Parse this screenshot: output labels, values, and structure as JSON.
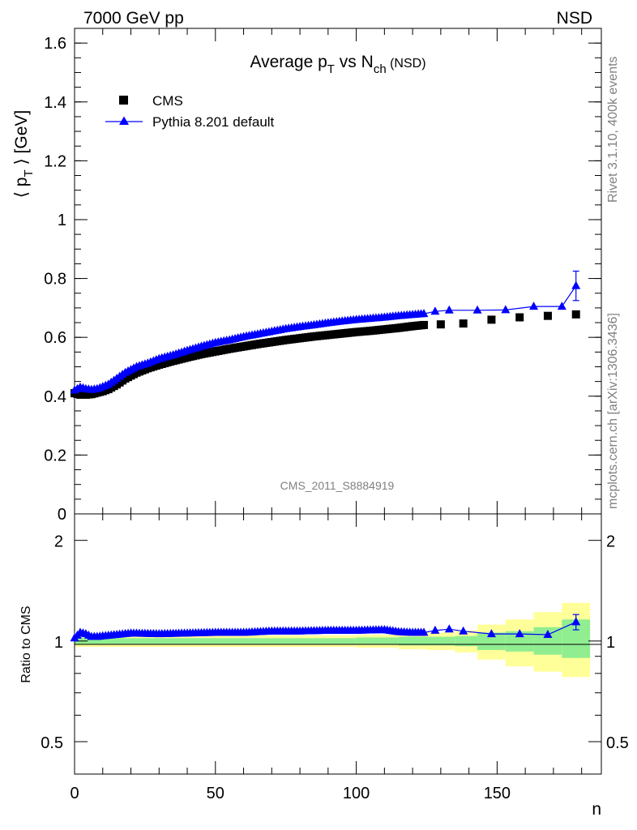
{
  "header": {
    "left": "7000 GeV pp",
    "right": "NSD"
  },
  "side_text": {
    "top": "Rivet 3.1.10,  400k events",
    "bottom": "mcplots.cern.ch [arXiv:1306.3436]"
  },
  "chart_data": [
    {
      "type": "scatter",
      "title": "Average p_T vs N_ch (NSD)",
      "ylabel": "⟨ p_T ⟩ [GeV]",
      "xlabel": "n",
      "watermark": "CMS_2011_S8884919",
      "xlim": [
        0,
        187
      ],
      "ylim": [
        0,
        1.65
      ],
      "x_ticks": [
        0,
        50,
        100,
        150
      ],
      "y_ticks": [
        0,
        0.2,
        0.4,
        0.6,
        0.8,
        1,
        1.2,
        1.4,
        1.6
      ],
      "y_tick_labels": [
        "0",
        "0.2",
        "0.4",
        "0.6",
        "0.8",
        "1",
        "1.2",
        "1.4",
        "1.6"
      ],
      "legend_position": "top-left",
      "series": [
        {
          "name": "CMS",
          "marker": "square",
          "color": "#000000",
          "anchors_x": [
            0,
            2,
            4,
            6,
            8,
            10,
            12,
            15,
            18,
            22,
            26,
            30,
            35,
            40,
            45,
            50,
            55,
            60,
            65,
            70,
            75,
            80,
            85,
            90,
            95,
            100,
            105,
            110,
            115,
            120,
            124
          ],
          "anchors_y": [
            0.41,
            0.405,
            0.405,
            0.407,
            0.412,
            0.417,
            0.424,
            0.44,
            0.46,
            0.48,
            0.495,
            0.507,
            0.52,
            0.532,
            0.543,
            0.552,
            0.561,
            0.569,
            0.577,
            0.584,
            0.591,
            0.597,
            0.603,
            0.608,
            0.613,
            0.618,
            0.622,
            0.627,
            0.632,
            0.638,
            0.642
          ],
          "extra_x": [
            130,
            138,
            148,
            158,
            168,
            178
          ],
          "extra_y": [
            0.644,
            0.647,
            0.66,
            0.668,
            0.673,
            0.678
          ]
        },
        {
          "name": "Pythia 8.201 default",
          "marker": "triangle",
          "color": "#0000ff",
          "anchors_x": [
            0,
            2,
            4,
            6,
            8,
            10,
            12,
            15,
            18,
            22,
            26,
            30,
            35,
            40,
            45,
            50,
            55,
            60,
            65,
            70,
            75,
            80,
            85,
            90,
            95,
            100,
            105,
            110,
            115,
            120,
            124
          ],
          "anchors_y": [
            0.42,
            0.43,
            0.425,
            0.422,
            0.425,
            0.432,
            0.44,
            0.46,
            0.48,
            0.5,
            0.512,
            0.527,
            0.54,
            0.555,
            0.569,
            0.582,
            0.591,
            0.602,
            0.611,
            0.62,
            0.629,
            0.636,
            0.642,
            0.649,
            0.655,
            0.66,
            0.664,
            0.668,
            0.673,
            0.677,
            0.68
          ],
          "extra_x": [
            128,
            133,
            143,
            153,
            163,
            173,
            178
          ],
          "extra_y": [
            0.688,
            0.692,
            0.692,
            0.693,
            0.705,
            0.705,
            0.775
          ],
          "extra_err": [
            0,
            0,
            0,
            0,
            0,
            0,
            0.05
          ]
        }
      ]
    },
    {
      "type": "scatter",
      "ylabel": "Ratio to CMS",
      "xlabel": "n",
      "xlim": [
        0,
        187
      ],
      "ylim": [
        0.4,
        2.4
      ],
      "log_y": true,
      "y_ticks": [
        0.5,
        1,
        2
      ],
      "y_tick_labels": [
        "0.5",
        "1",
        "2"
      ],
      "x_ticks": [
        0,
        50,
        100,
        150
      ],
      "x_tick_labels": [
        "0",
        "50",
        "100",
        "150"
      ],
      "bands": {
        "edges": [
          0,
          100,
          115,
          125,
          135,
          143,
          153,
          163,
          173,
          183
        ],
        "inner_lo": [
          0.98,
          0.975,
          0.97,
          0.97,
          0.965,
          0.94,
          0.93,
          0.91,
          0.89
        ],
        "inner_hi": [
          1.02,
          1.025,
          1.03,
          1.03,
          1.035,
          1.06,
          1.07,
          1.1,
          1.16
        ],
        "outer_lo": [
          0.96,
          0.955,
          0.945,
          0.94,
          0.925,
          0.88,
          0.84,
          0.81,
          0.78
        ],
        "outer_hi": [
          1.04,
          1.045,
          1.055,
          1.06,
          1.075,
          1.12,
          1.16,
          1.22,
          1.3
        ],
        "inner_color": "#90ee90",
        "outer_color": "#ffff99"
      },
      "series": [
        {
          "name": "Pythia 8.201 default",
          "color": "#0000ff",
          "anchors_x": [
            0,
            2,
            4,
            6,
            8,
            10,
            15,
            20,
            30,
            40,
            50,
            60,
            70,
            80,
            90,
            100,
            110,
            115,
            120,
            124,
            128,
            133,
            138,
            148,
            158,
            168,
            178
          ],
          "anchors_y": [
            1.02,
            1.06,
            1.05,
            1.03,
            1.03,
            1.035,
            1.045,
            1.055,
            1.05,
            1.055,
            1.06,
            1.06,
            1.07,
            1.07,
            1.075,
            1.075,
            1.08,
            1.065,
            1.06,
            1.06,
            1.075,
            1.085,
            1.07,
            1.05,
            1.05,
            1.045,
            1.14
          ],
          "err_last": 0.06
        }
      ]
    }
  ]
}
